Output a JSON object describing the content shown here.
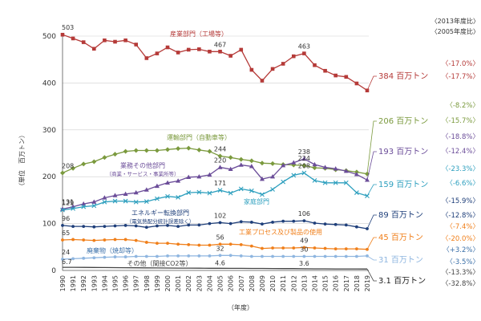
{
  "chart_data": {
    "type": "line",
    "ylabel": "（単位　百万トン）",
    "xlabel": "（年度）",
    "ylim": [
      0,
      500
    ],
    "yticks": [
      0,
      100,
      200,
      300,
      400,
      500
    ],
    "x": [
      "1990",
      "1991",
      "1992",
      "1993",
      "1994",
      "1995",
      "1996",
      "1997",
      "1998",
      "1999",
      "2000",
      "2001",
      "2002",
      "2003",
      "2004",
      "2005",
      "2006",
      "2007",
      "2008",
      "2009",
      "2010",
      "2011",
      "2012",
      "2013",
      "2014",
      "2015",
      "2016",
      "2017",
      "2018",
      "2019"
    ],
    "legend_header": {
      "line1": "〈2013年度比〉",
      "line2": "〈2005年度比〉"
    },
    "series": [
      {
        "key": "industry",
        "name": "産業部門（工場等）",
        "sub": "",
        "color": "#b53a38",
        "marker": "square",
        "values": [
          503,
          495,
          487,
          473,
          491,
          488,
          491,
          482,
          453,
          463,
          476,
          465,
          471,
          472,
          467,
          467,
          458,
          471,
          428,
          405,
          430,
          441,
          457,
          463,
          438,
          426,
          416,
          413,
          399,
          384
        ],
        "end_label": "384 百万トン",
        "pct_2013": "〈-17.0%〉",
        "pct_2005": "〈-17.7%〉",
        "point_labels": [
          {
            "i": 0,
            "text": "503"
          },
          {
            "i": 15,
            "text": "467"
          },
          {
            "i": 23,
            "text": "463"
          }
        ]
      },
      {
        "key": "transport",
        "name": "運輸部門（自動車等）",
        "sub": "",
        "color": "#7b9a3e",
        "marker": "diamond",
        "values": [
          208,
          218,
          227,
          232,
          241,
          248,
          254,
          256,
          256,
          256,
          258,
          260,
          261,
          257,
          254,
          244,
          241,
          237,
          234,
          229,
          228,
          226,
          225,
          224,
          219,
          218,
          215,
          213,
          210,
          206
        ],
        "end_label": "206 百万トン",
        "pct_2013": "〈-8.2%〉",
        "pct_2005": "〈-15.7%〉",
        "point_labels": [
          {
            "i": 0,
            "text": "208"
          },
          {
            "i": 15,
            "text": "244"
          },
          {
            "i": 23,
            "text": "224"
          }
        ]
      },
      {
        "key": "commercial",
        "name": "業務その他部門",
        "sub": "（商業・サービス・事業所等）",
        "color": "#6b4d99",
        "marker": "triangle",
        "values": [
          131,
          136,
          142,
          146,
          155,
          160,
          163,
          166,
          172,
          180,
          187,
          191,
          199,
          200,
          204,
          220,
          216,
          225,
          222,
          195,
          200,
          224,
          230,
          238,
          226,
          220,
          217,
          212,
          205,
          193
        ],
        "end_label": "193 百万トン",
        "pct_2013": "〈-18.8%〉",
        "pct_2005": "〈-12.4%〉",
        "point_labels": [
          {
            "i": 0,
            "text": "131"
          },
          {
            "i": 15,
            "text": "220"
          },
          {
            "i": 23,
            "text": "238"
          }
        ]
      },
      {
        "key": "household",
        "name": "家庭部門",
        "sub": "",
        "color": "#2d9fbe",
        "marker": "cross",
        "values": [
          129,
          132,
          136,
          138,
          146,
          148,
          148,
          146,
          147,
          153,
          158,
          156,
          166,
          167,
          165,
          171,
          165,
          174,
          170,
          162,
          173,
          189,
          203,
          208,
          192,
          187,
          187,
          187,
          166,
          159
        ],
        "end_label": "159 百万トン",
        "pct_2013": "〈-23.3%〉",
        "pct_2005": "〈-6.6%〉",
        "point_labels": [
          {
            "i": 0,
            "text": "129"
          },
          {
            "i": 15,
            "text": "171"
          },
          {
            "i": 23,
            "text": "208"
          }
        ]
      },
      {
        "key": "energy",
        "name": "エネルギー転換部門",
        "sub": "（電気熱配分統計誤差除く）",
        "color": "#1f3f7a",
        "marker": "circle",
        "values": [
          96,
          94,
          94,
          93,
          94,
          95,
          96,
          95,
          92,
          95,
          96,
          94,
          97,
          97,
          100,
          102,
          100,
          104,
          103,
          99,
          103,
          105,
          105,
          106,
          101,
          99,
          98,
          97,
          93,
          89
        ],
        "end_label": "89 百万トン",
        "pct_2013": "〈-15.9%〉",
        "pct_2005": "〈-12.8%〉",
        "point_labels": [
          {
            "i": 0,
            "text": "96"
          },
          {
            "i": 15,
            "text": "102"
          },
          {
            "i": 23,
            "text": "106"
          }
        ]
      },
      {
        "key": "process",
        "name": "工業プロセス及び製品の使用",
        "sub": "",
        "color": "#f07f1a",
        "marker": "circle",
        "values": [
          65,
          66,
          65,
          64,
          65,
          66,
          66,
          64,
          60,
          58,
          58,
          56,
          55,
          54,
          54,
          56,
          56,
          55,
          52,
          47,
          48,
          48,
          48,
          49,
          48,
          47,
          46,
          46,
          46,
          45
        ],
        "end_label": "45 百万トン",
        "pct_2013": "〈-7.4%〉",
        "pct_2005": "〈-20.0%〉",
        "point_labels": [
          {
            "i": 0,
            "text": "65"
          },
          {
            "i": 15,
            "text": "56"
          },
          {
            "i": 23,
            "text": "49"
          }
        ]
      },
      {
        "key": "waste",
        "name": "廃棄物（焼却等）",
        "sub": "",
        "color": "#8fb6e0",
        "marker": "circle",
        "values": [
          24,
          25,
          26,
          27,
          28,
          29,
          29,
          30,
          30,
          30,
          31,
          31,
          31,
          31,
          31,
          32,
          32,
          31,
          30,
          30,
          30,
          30,
          30,
          30,
          30,
          30,
          30,
          30,
          30,
          31
        ],
        "end_label": "31 百万トン",
        "pct_2013": "〈+3.2%〉",
        "pct_2005": "〈-3.5%〉",
        "point_labels": [
          {
            "i": 0,
            "text": "24"
          },
          {
            "i": 15,
            "text": "32"
          },
          {
            "i": 23,
            "text": "30"
          }
        ]
      },
      {
        "key": "other",
        "name": "その他（間接CO2等）",
        "sub": "",
        "color": "#444444",
        "marker": "none",
        "values": [
          6.7,
          6.6,
          6.5,
          6.3,
          6.2,
          6.0,
          5.9,
          5.7,
          5.5,
          5.3,
          5.1,
          5.0,
          4.9,
          4.8,
          4.7,
          4.6,
          4.5,
          4.4,
          4.3,
          4.2,
          4.1,
          4.0,
          3.9,
          3.6,
          3.5,
          3.4,
          3.3,
          3.3,
          3.2,
          3.1
        ],
        "end_label": "3.1 百万トン",
        "pct_2013": "〈-13.3%〉",
        "pct_2005": "〈-32.8%〉",
        "point_labels": [
          {
            "i": 0,
            "text": "6.7"
          },
          {
            "i": 15,
            "text": "4.6"
          },
          {
            "i": 23,
            "text": "3.6"
          }
        ]
      }
    ]
  }
}
